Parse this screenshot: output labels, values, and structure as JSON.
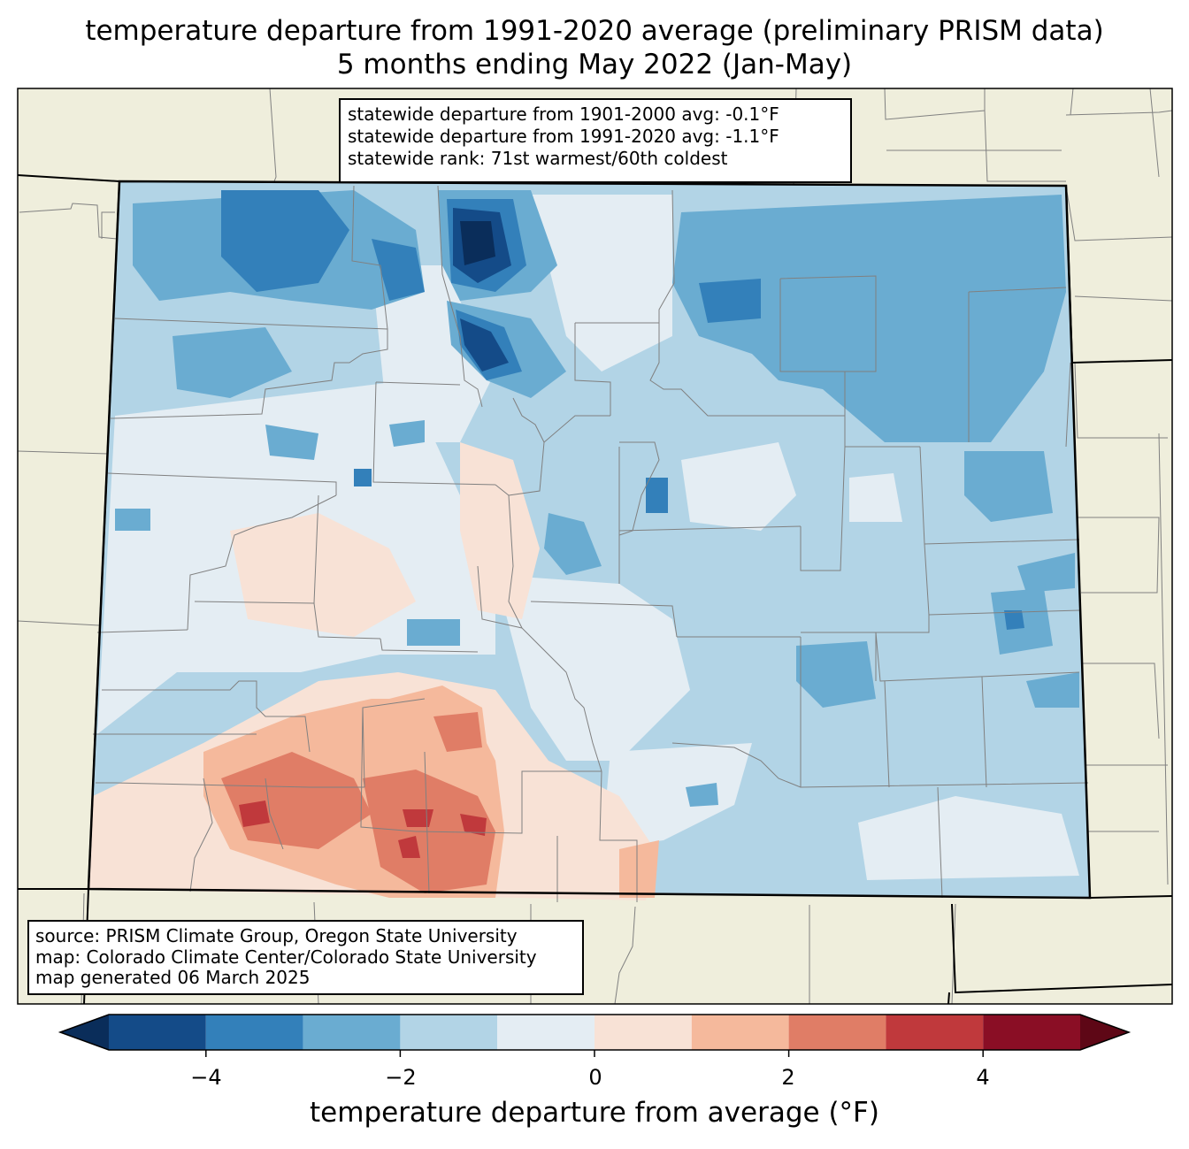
{
  "title": {
    "line1": "temperature departure from 1991-2020 average (preliminary PRISM data)",
    "line2": "5 months ending May 2022 (Jan-May)"
  },
  "stats": {
    "line1": "statewide departure from 1901-2000 avg: -0.1°F",
    "line2": "statewide departure from 1991-2020 avg: -1.1°F",
    "line3": "statewide rank: 71st warmest/60th coldest"
  },
  "source": {
    "line1": "source: PRISM Climate Group, Oregon State University",
    "line2": "map: Colorado Climate Center/Colorado State University",
    "line3": "map generated 06 March 2025"
  },
  "colorbar": {
    "label": "temperature departure from average (°F)",
    "ticks": [
      "−4",
      "−2",
      "0",
      "2",
      "4"
    ],
    "bins": [
      {
        "min": -5,
        "max": -4,
        "color": "#144b88"
      },
      {
        "min": -4,
        "max": -3,
        "color": "#3380ba"
      },
      {
        "min": -3,
        "max": -2,
        "color": "#6aacd1"
      },
      {
        "min": -2,
        "max": -1,
        "color": "#b2d4e6"
      },
      {
        "min": -1,
        "max": 0,
        "color": "#e4edf3"
      },
      {
        "min": 0,
        "max": 1,
        "color": "#f8e2d6"
      },
      {
        "min": 1,
        "max": 2,
        "color": "#f5b99c"
      },
      {
        "min": 2,
        "max": 3,
        "color": "#e07d66"
      },
      {
        "min": 3,
        "max": 4,
        "color": "#c0393c"
      },
      {
        "min": 4,
        "max": 5,
        "color": "#8a0e25"
      }
    ],
    "under_color": "#0a2d5a",
    "over_color": "#5e0716"
  },
  "colors": {
    "land_background": "#efeedc",
    "county_lines": "#808080",
    "state_border": "#000000"
  }
}
